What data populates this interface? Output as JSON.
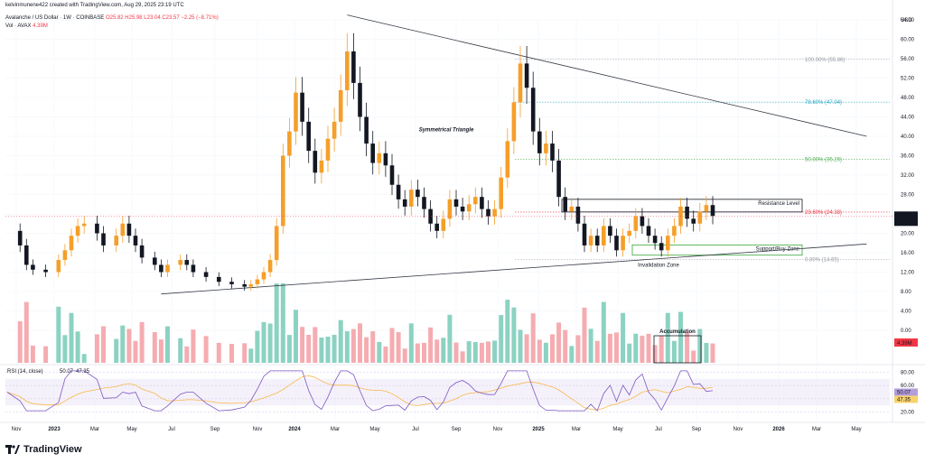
{
  "header": {
    "line1": "kelvinmunene422 created with TradingView.com, Aug 29, 2025 23:19 UTC",
    "symbol": "Avalanche / US Dollar · 1W · COINBASE",
    "ohlc": "O25.82 H25.98 L23.04 C23.57 −2.25 (−8.71%)",
    "vol_label": "Vol · AVAX",
    "vol_value": "4.39M",
    "currency": "USD"
  },
  "brand": {
    "name": "TradingView"
  },
  "colors": {
    "up": "#f59f2a",
    "down": "#131722",
    "vol_up": "#7fcdbb",
    "vol_down": "#f4a3a8",
    "rsi_line": "#7e57c2",
    "rsi_ma": "#f9b84a",
    "fib_100": "#9598a1",
    "fib_786": "#22a7c4",
    "fib_50": "#4caf50",
    "fib_236": "#f23645",
    "fib_0": "#9598a1",
    "support": "#4caf50",
    "price_tag": "#131722",
    "vol_tag": "#f23645",
    "rsi_tag": "#b39ddb",
    "rsi_ma_tag": "#f9d26b"
  },
  "annotations": {
    "triangle": "Symmetrical Triangle",
    "resistance": "Resistance Level",
    "support": "Support/Buy Zone",
    "invalidation": "Invalidation Zone",
    "accumulation": "Accumulation"
  },
  "fib_levels": [
    {
      "label": "100.00% (55.86)",
      "price": 55.86,
      "color_key": "fib_100"
    },
    {
      "label": "78.60% (47.04)",
      "price": 47.04,
      "color_key": "fib_786"
    },
    {
      "label": "50.00% (35.26)",
      "price": 35.26,
      "color_key": "fib_50"
    },
    {
      "label": "23.60% (24.38)",
      "price": 24.38,
      "color_key": "fib_236"
    },
    {
      "label": "0.00% (14.65)",
      "price": 14.65,
      "color_key": "fib_0"
    }
  ],
  "price_tag": {
    "value": "23.57",
    "countdown": "2d 1h"
  },
  "vol_tag": "4.39M",
  "rsi": {
    "label": "RSI (14, close)",
    "value": "50.07",
    "ma": "47.35",
    "ticks": [
      "80.00",
      "60.00",
      "40.00",
      "20.00"
    ],
    "upper": 70,
    "lower": 30
  },
  "chart_data": {
    "type": "candlestick",
    "symbol": "AVAX/USD",
    "timeframe": "1W",
    "price_ticks": [
      "64.00",
      "60.00",
      "56.00",
      "52.00",
      "48.00",
      "44.00",
      "40.00",
      "36.00",
      "32.00",
      "28.00",
      "24.00",
      "20.00",
      "16.00",
      "12.00",
      "8.00",
      "4.00",
      "0.00"
    ],
    "x_ticks": [
      "Nov",
      "2023",
      "Mar",
      "May",
      "Jul",
      "Sep",
      "Nov",
      "2024",
      "Mar",
      "May",
      "Jul",
      "Sep",
      "Nov",
      "2025",
      "Mar",
      "May",
      "Jul",
      "Sep",
      "Nov",
      "2026",
      "Mar",
      "May"
    ],
    "close_path": [
      {
        "t": 0,
        "c": 20.5
      },
      {
        "t": 2,
        "c": 17.5
      },
      {
        "t": 3,
        "c": 13.5
      },
      {
        "t": 4,
        "c": 12.5
      },
      {
        "t": 6,
        "c": 12.0
      },
      {
        "t": 8,
        "c": 14.5
      },
      {
        "t": 9,
        "c": 16.5
      },
      {
        "t": 10,
        "c": 19.5
      },
      {
        "t": 11,
        "c": 21.5
      },
      {
        "t": 12,
        "c": 22.0
      },
      {
        "t": 14,
        "c": 20.0
      },
      {
        "t": 15,
        "c": 17.5
      },
      {
        "t": 17,
        "c": 19.5
      },
      {
        "t": 18,
        "c": 22.0
      },
      {
        "t": 19,
        "c": 19.5
      },
      {
        "t": 20,
        "c": 17.5
      },
      {
        "t": 21,
        "c": 15.0
      },
      {
        "t": 23,
        "c": 13.5
      },
      {
        "t": 24,
        "c": 12.0
      },
      {
        "t": 25,
        "c": 13.5
      },
      {
        "t": 27,
        "c": 14.5
      },
      {
        "t": 28,
        "c": 13.5
      },
      {
        "t": 29,
        "c": 12.0
      },
      {
        "t": 31,
        "c": 11.0
      },
      {
        "t": 33,
        "c": 10.0
      },
      {
        "t": 35,
        "c": 9.5
      },
      {
        "t": 37,
        "c": 9.0
      },
      {
        "t": 38,
        "c": 9.5
      },
      {
        "t": 39,
        "c": 10.5
      },
      {
        "t": 40,
        "c": 12.0
      },
      {
        "t": 41,
        "c": 14.5
      },
      {
        "t": 42,
        "c": 21.5
      },
      {
        "t": 43,
        "c": 36.0
      },
      {
        "t": 44,
        "c": 41.0
      },
      {
        "t": 45,
        "c": 49.0
      },
      {
        "t": 46,
        "c": 43.0
      },
      {
        "t": 47,
        "c": 37.0
      },
      {
        "t": 48,
        "c": 32.5
      },
      {
        "t": 49,
        "c": 35.0
      },
      {
        "t": 50,
        "c": 39.5
      },
      {
        "t": 51,
        "c": 43.0
      },
      {
        "t": 52,
        "c": 49.5
      },
      {
        "t": 53,
        "c": 57.5
      },
      {
        "t": 54,
        "c": 51.0
      },
      {
        "t": 55,
        "c": 44.0
      },
      {
        "t": 56,
        "c": 38.5
      },
      {
        "t": 57,
        "c": 34.5
      },
      {
        "t": 58,
        "c": 36.5
      },
      {
        "t": 59,
        "c": 34.0
      },
      {
        "t": 60,
        "c": 30.0
      },
      {
        "t": 61,
        "c": 27.0
      },
      {
        "t": 62,
        "c": 25.5
      },
      {
        "t": 63,
        "c": 29.0
      },
      {
        "t": 64,
        "c": 27.5
      },
      {
        "t": 65,
        "c": 25.0
      },
      {
        "t": 66,
        "c": 22.0
      },
      {
        "t": 67,
        "c": 20.5
      },
      {
        "t": 68,
        "c": 23.0
      },
      {
        "t": 69,
        "c": 27.0
      },
      {
        "t": 70,
        "c": 25.5
      },
      {
        "t": 71,
        "c": 24.5
      },
      {
        "t": 72,
        "c": 26.0
      },
      {
        "t": 73,
        "c": 27.5
      },
      {
        "t": 74,
        "c": 25.0
      },
      {
        "t": 75,
        "c": 23.5
      },
      {
        "t": 76,
        "c": 25.0
      },
      {
        "t": 77,
        "c": 31.5
      },
      {
        "t": 78,
        "c": 39.0
      },
      {
        "t": 79,
        "c": 47.0
      },
      {
        "t": 80,
        "c": 55.0
      },
      {
        "t": 81,
        "c": 50.0
      },
      {
        "t": 82,
        "c": 41.0
      },
      {
        "t": 83,
        "c": 36.5
      },
      {
        "t": 84,
        "c": 38.5
      },
      {
        "t": 85,
        "c": 35.0
      },
      {
        "t": 86,
        "c": 27.5
      },
      {
        "t": 87,
        "c": 24.5
      },
      {
        "t": 88,
        "c": 25.5
      },
      {
        "t": 89,
        "c": 22.0
      },
      {
        "t": 90,
        "c": 17.5
      },
      {
        "t": 91,
        "c": 19.5
      },
      {
        "t": 92,
        "c": 17.5
      },
      {
        "t": 93,
        "c": 21.5
      },
      {
        "t": 94,
        "c": 19.5
      },
      {
        "t": 95,
        "c": 16.5
      },
      {
        "t": 96,
        "c": 19.5
      },
      {
        "t": 97,
        "c": 20.5
      },
      {
        "t": 98,
        "c": 23.5
      },
      {
        "t": 99,
        "c": 21.5
      },
      {
        "t": 100,
        "c": 19.5
      },
      {
        "t": 101,
        "c": 18.0
      },
      {
        "t": 102,
        "c": 16.5
      },
      {
        "t": 103,
        "c": 19.5
      },
      {
        "t": 104,
        "c": 21.5
      },
      {
        "t": 105,
        "c": 25.5
      },
      {
        "t": 106,
        "c": 23.0
      },
      {
        "t": 107,
        "c": 22.0
      },
      {
        "t": 108,
        "c": 24.5
      },
      {
        "t": 109,
        "c": 25.82
      },
      {
        "t": 110,
        "c": 23.57
      }
    ],
    "volume_pattern": "volume bars mirror candle direction; largest spikes near Feb 2024 and Dec 2024 breakouts",
    "trendlines": [
      {
        "name": "upper",
        "from": {
          "t": 53,
          "p": 65.0
        },
        "to": {
          "t": 134,
          "p": 40.0
        }
      },
      {
        "name": "lower",
        "from": {
          "t": 24,
          "p": 7.5
        },
        "to": {
          "t": 134,
          "p": 17.8
        }
      }
    ],
    "zones": {
      "resistance": [
        24.4,
        27.0
      ],
      "support": [
        15.5,
        17.6
      ]
    }
  }
}
